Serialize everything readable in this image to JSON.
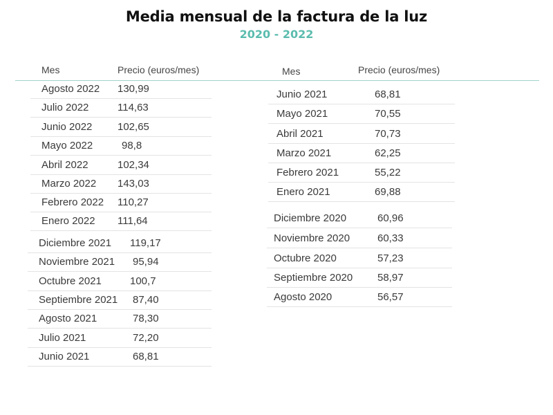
{
  "title": "Media mensual de la factura de la luz",
  "subtitle": "2020 - 2022",
  "headers": {
    "mes": "Mes",
    "precio": "Precio (euros/mes)"
  },
  "left_rows": [
    {
      "mes": "Agosto 2022",
      "precio": "130,99"
    },
    {
      "mes": "Julio 2022",
      "precio": "114,63"
    },
    {
      "mes": "Junio 2022",
      "precio": "102,65"
    },
    {
      "mes": "Mayo 2022",
      "precio": "98,8"
    },
    {
      "mes": "Abril 2022",
      "precio": "102,34"
    },
    {
      "mes": "Marzo 2022",
      "precio": "143,03"
    },
    {
      "mes": "Febrero 2022",
      "precio": "110,27"
    },
    {
      "mes": "Enero 2022",
      "precio": "111,64"
    },
    {
      "mes": "Diciembre 2021",
      "precio": "119,17"
    },
    {
      "mes": "Noviembre 2021",
      "precio": "95,94"
    },
    {
      "mes": "Octubre 2021",
      "precio": "100,7"
    },
    {
      "mes": "Septiembre 2021",
      "precio": "87,40"
    },
    {
      "mes": "Agosto 2021",
      "precio": "78,30"
    },
    {
      "mes": "Julio 2021",
      "precio": "72,20"
    },
    {
      "mes": "Junio 2021",
      "precio": "68,81"
    }
  ],
  "right_rows": [
    {
      "mes": "Junio 2021",
      "precio": "68,81"
    },
    {
      "mes": "Mayo 2021",
      "precio": "70,55"
    },
    {
      "mes": "Abril 2021",
      "precio": "70,73"
    },
    {
      "mes": "Marzo 2021",
      "precio": "62,25"
    },
    {
      "mes": "Febrero 2021",
      "precio": "55,22"
    },
    {
      "mes": "Enero 2021",
      "precio": "69,88"
    },
    {
      "mes": "Diciembre 2020",
      "precio": "60,96"
    },
    {
      "mes": "Noviembre 2020",
      "precio": "60,33"
    },
    {
      "mes": "Octubre 2020",
      "precio": "57,23"
    },
    {
      "mes": "Septiembre 2020",
      "precio": "58,97"
    },
    {
      "mes": "Agosto 2020",
      "precio": "56,57"
    }
  ]
}
